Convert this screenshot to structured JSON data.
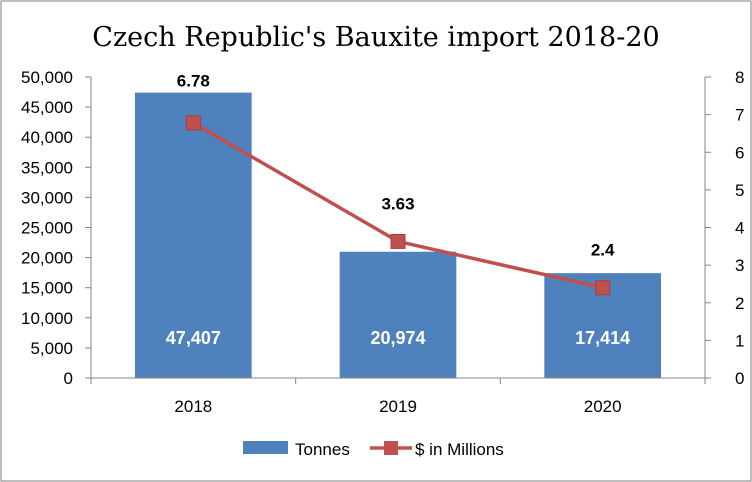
{
  "chart_data": {
    "type": "bar",
    "title": "Czech Republic's Bauxite import 2018-20",
    "categories": [
      "2018",
      "2019",
      "2020"
    ],
    "series": [
      {
        "name": "Tonnes",
        "type": "bar",
        "axis": "left",
        "color": "#4F81BD",
        "values": [
          47407,
          20974,
          17414
        ],
        "data_labels": [
          "47,407",
          "20,974",
          "17,414"
        ]
      },
      {
        "name": "$ in Millions",
        "type": "line",
        "axis": "right",
        "color": "#C0504D",
        "marker": "square",
        "values": [
          6.78,
          3.63,
          2.4
        ],
        "data_labels": [
          "6.78",
          "3.63",
          "2.4"
        ]
      }
    ],
    "y_left": {
      "range": [
        0,
        50000
      ],
      "ticks": [
        "0",
        "5,000",
        "10,000",
        "15,000",
        "20,000",
        "25,000",
        "30,000",
        "35,000",
        "40,000",
        "45,000",
        "50,000"
      ]
    },
    "y_right": {
      "range": [
        0,
        8
      ],
      "ticks": [
        "0",
        "1",
        "2",
        "3",
        "4",
        "5",
        "6",
        "7",
        "8"
      ]
    },
    "grid": false,
    "legend": "bottom"
  }
}
